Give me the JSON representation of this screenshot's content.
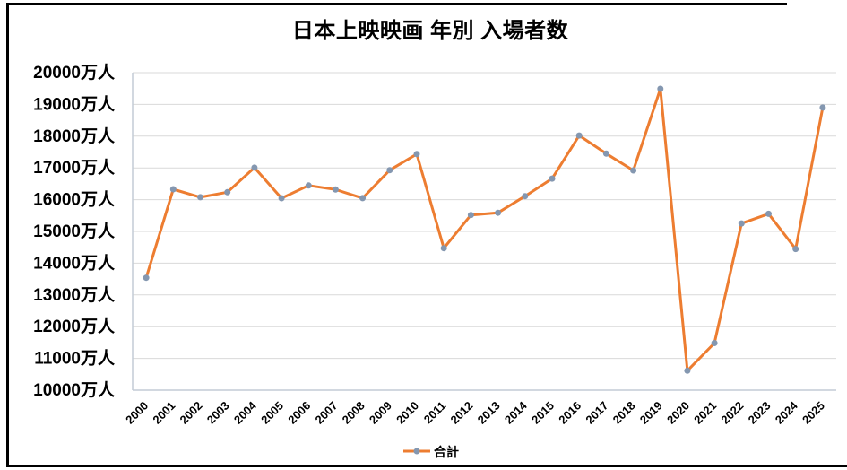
{
  "title": "日本上映映画 年別 入場者数",
  "legend": {
    "label": "合計",
    "position": "bottom"
  },
  "colors": {
    "line": "#ED7D31",
    "marker": "#8497B0",
    "gridline": "#D9D9D9",
    "axis": "#C3CCD5",
    "border": "#000000",
    "background": "#FFFFFF",
    "text": "#000000"
  },
  "y_axis": {
    "suffix": "万人",
    "min": 10000,
    "max": 20000,
    "step": 1000
  },
  "chart_data": {
    "type": "line",
    "title": "日本上映映画 年別 入場者数",
    "x": [
      2000,
      2001,
      2002,
      2003,
      2004,
      2005,
      2006,
      2007,
      2008,
      2009,
      2010,
      2011,
      2012,
      2013,
      2014,
      2015,
      2016,
      2017,
      2018,
      2019,
      2020,
      2021,
      2022,
      2023,
      2024,
      2025
    ],
    "series": [
      {
        "name": "合計",
        "values": [
          13539,
          16328,
          16077,
          16235,
          17009,
          16045,
          16445,
          16319,
          16049,
          16930,
          17436,
          14473,
          15516,
          15588,
          16111,
          16663,
          18019,
          17448,
          16921,
          19491,
          10614,
          11482,
          15252,
          15553,
          14445,
          18900
        ]
      }
    ],
    "xlabel": "",
    "ylabel": "",
    "ylim": [
      10000,
      20000
    ],
    "ytick_step": 1000,
    "ytick_suffix": "万人",
    "grid": true,
    "legend_position": "bottom",
    "legend_entries": [
      "合計"
    ]
  }
}
